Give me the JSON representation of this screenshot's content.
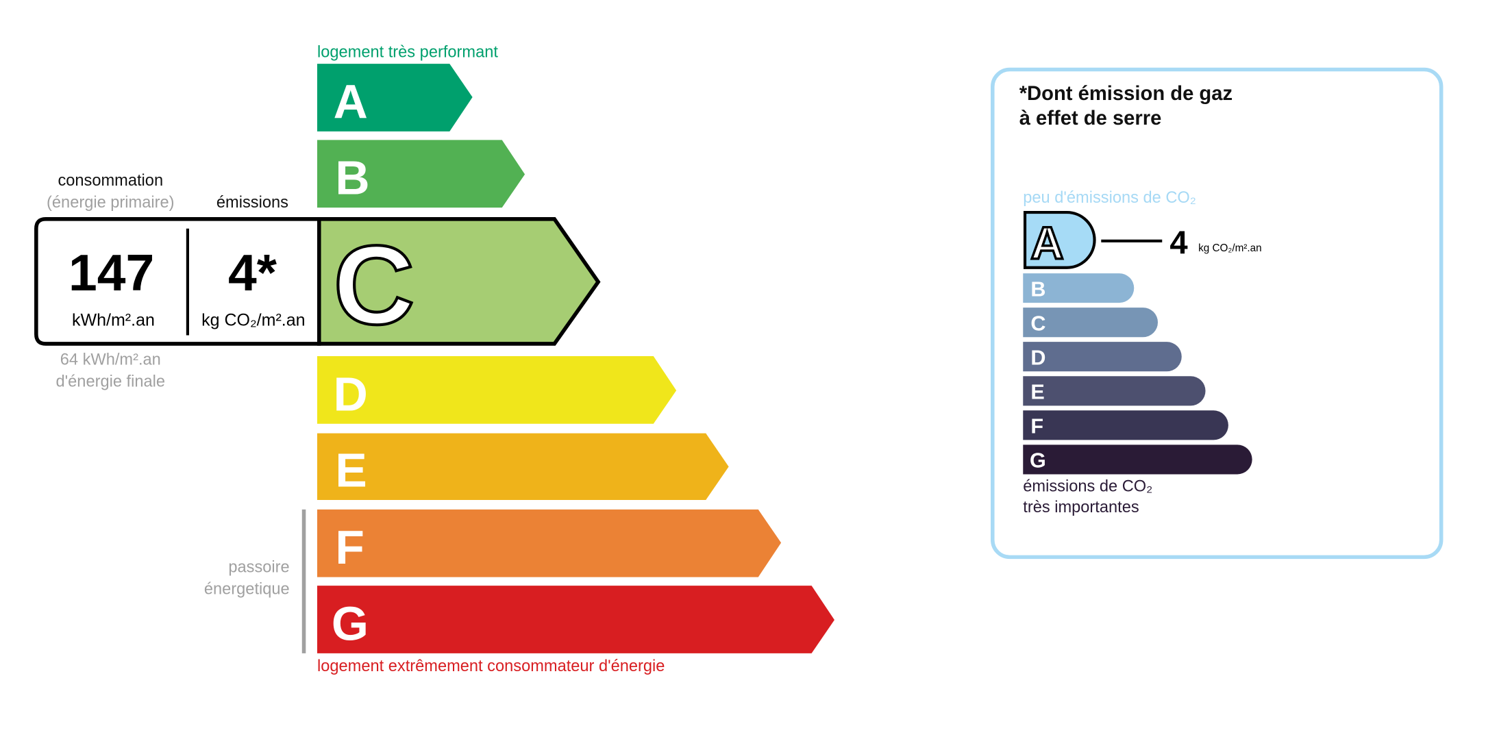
{
  "energy": {
    "top_label": "logement très performant",
    "bottom_label": "logement extrêmement consommateur d'énergie",
    "current_class": "C",
    "classes": [
      {
        "letter": "A",
        "color": "#00a06d"
      },
      {
        "letter": "B",
        "color": "#52b153"
      },
      {
        "letter": "C",
        "color": "#a6cd73"
      },
      {
        "letter": "D",
        "color": "#f0e61b"
      },
      {
        "letter": "E",
        "color": "#efb31a"
      },
      {
        "letter": "F",
        "color": "#eb8235"
      },
      {
        "letter": "G",
        "color": "#d81e21"
      }
    ],
    "consumption_heading": "consommation",
    "consumption_subheading": "(énergie primaire)",
    "emissions_heading": "émissions",
    "consumption_value": "147",
    "consumption_unit": "kWh/m².an",
    "emissions_value": "4*",
    "emissions_unit": "kg CO₂/m².an",
    "final_energy_value": "64 kWh/m².an",
    "final_energy_label": "d'énergie finale",
    "passoire_line1": "passoire",
    "passoire_line2": "énergetique"
  },
  "ghg": {
    "title_line1": "*Dont émission de gaz",
    "title_line2": "à effet de serre",
    "top_label": "peu d'émissions de CO₂",
    "bottom_label_line1": "émissions de CO₂",
    "bottom_label_line2": "très importantes",
    "current_class": "A",
    "value": "4",
    "unit": "kg CO₂/m².an",
    "border_color": "#a8daf5",
    "classes": [
      {
        "letter": "A",
        "color": "#a6dbf6"
      },
      {
        "letter": "B",
        "color": "#8cb4d4"
      },
      {
        "letter": "C",
        "color": "#7795b5"
      },
      {
        "letter": "D",
        "color": "#5f6d8f"
      },
      {
        "letter": "E",
        "color": "#4d506f"
      },
      {
        "letter": "F",
        "color": "#393654"
      },
      {
        "letter": "G",
        "color": "#2a1b36"
      }
    ]
  }
}
